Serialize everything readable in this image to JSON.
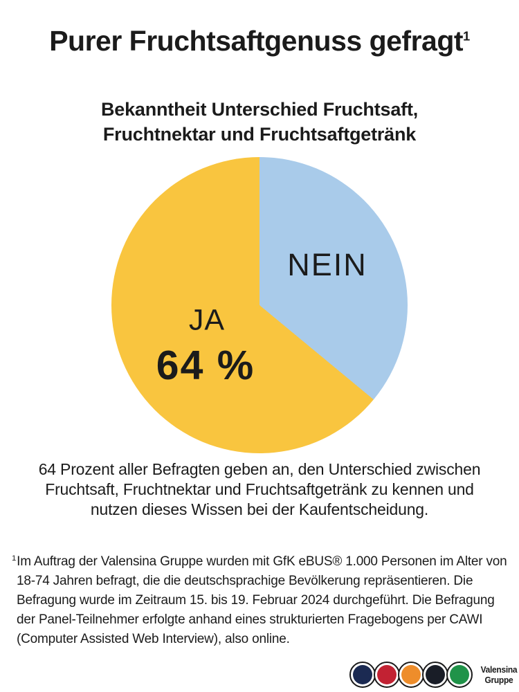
{
  "title": {
    "text": "Purer Fruchtsaftgenuss gefragt",
    "footnote_marker": "1"
  },
  "chart": {
    "title_line1": "Bekanntheit Unterschied Fruchtsaft,",
    "title_line2": "Fruchtnektar und Fruchtsaftgetränk"
  },
  "chart_data": {
    "type": "pie",
    "title": "Bekanntheit Unterschied Fruchtsaft, Fruchtnektar und Fruchtsaftgetränk",
    "start_angle": "top",
    "direction": "clockwise",
    "slices": [
      {
        "label": "NEIN",
        "value": 36,
        "color": "#a9cbea"
      },
      {
        "label": "JA",
        "value": 64,
        "value_label": "64 %",
        "color": "#f9c53f"
      }
    ],
    "legend": "none"
  },
  "caption": {
    "lines": [
      "64 Prozent aller Befragten geben an, den Unterschied zwischen",
      "Fruchtsaft, Fruchtnektar und Fruchtsaftgetränk zu kennen und",
      "nutzen dieses Wissen bei der Kaufentscheidung."
    ]
  },
  "footnote": {
    "marker": "1",
    "text": "Im Auftrag der Valensina Gruppe wurden mit GfK eBUS® 1.000 Personen im Alter von 18-74 Jahren befragt, die die deutschsprachige Bevölkerung repräsentieren. Die Befragung wurde im Zeitraum 15. bis 19. Februar 2024 durchgeführt. Die Befragung der Panel-Teilnehmer erfolgte anhand eines strukturierten Fragebogens per CAWI (Computer Assisted Web Interview), also online."
  },
  "logo": {
    "name_line1": "Valensina",
    "name_line2": "Gruppe",
    "ring_color": "#1a1a1a",
    "circles": [
      {
        "name": "navy-circle",
        "color": "#1b2a52"
      },
      {
        "name": "red-circle",
        "color": "#c22233"
      },
      {
        "name": "orange-circle",
        "color": "#ee8d2b"
      },
      {
        "name": "black-circle",
        "color": "#191d27"
      },
      {
        "name": "green-circle",
        "color": "#209349"
      }
    ]
  }
}
